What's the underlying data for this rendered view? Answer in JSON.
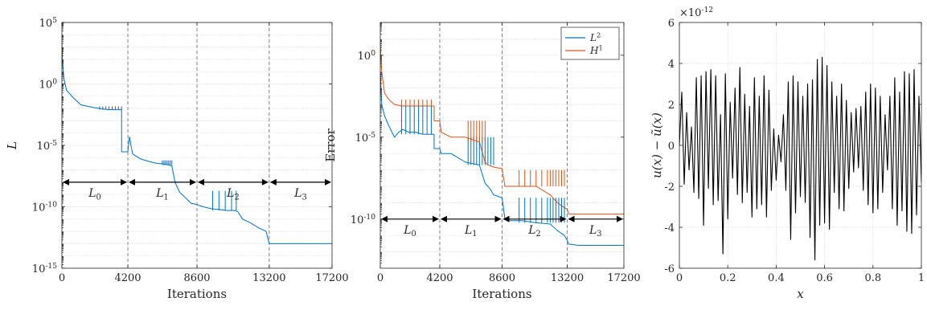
{
  "chart_data": [
    {
      "type": "line",
      "yscale": "log",
      "xlabel": "Iterations",
      "ylabel": "L",
      "xlim": [
        0,
        17200
      ],
      "ylim": [
        1e-15,
        100000.0
      ],
      "xticks": [
        0,
        4200,
        8600,
        13200,
        17200
      ],
      "xtick_labels": [
        "0",
        "4200",
        "8600",
        "13200",
        "17200"
      ],
      "yticks": [
        1e-15,
        1e-10,
        1e-05,
        1,
        100000.0
      ],
      "ytick_labels": [
        {
          "b": "10",
          "e": "-15"
        },
        {
          "b": "10",
          "e": "-10"
        },
        {
          "b": "10",
          "e": "-5"
        },
        {
          "b": "10",
          "e": "0"
        },
        {
          "b": "10",
          "e": "5"
        }
      ],
      "grid": true,
      "stage_boundaries": [
        4200,
        8600,
        13200
      ],
      "arrow_y": 1e-08,
      "stages": [
        {
          "base": "L",
          "sub": "0",
          "from": 0,
          "to": 4200
        },
        {
          "base": "L",
          "sub": "1",
          "from": 4200,
          "to": 8600
        },
        {
          "base": "L",
          "sub": "2",
          "from": 8600,
          "to": 13200
        },
        {
          "base": "L",
          "sub": "3",
          "from": 13200,
          "to": 17200
        }
      ],
      "series": [
        {
          "color": "#0072BD",
          "x": [
            0,
            50,
            150,
            300,
            700,
            1200,
            2000,
            2600,
            3000,
            3000,
            3800,
            3801,
            4100,
            4150,
            4200,
            4300,
            4500,
            5000,
            5500,
            6000,
            6500,
            6800,
            7000,
            7200,
            7500,
            7900,
            8200,
            8600,
            8800,
            9000,
            9500,
            10000,
            10500,
            11000,
            11200,
            11500,
            12000,
            12500,
            13000,
            13200,
            13300,
            14000,
            15000,
            16000,
            17200
          ],
          "y": [
            2000,
            30,
            2,
            0.3,
            0.08,
            0.02,
            0.012,
            0.009,
            0.008,
            0.008,
            0.008,
            3e-06,
            3e-06,
            3e-06,
            3e-06,
            5e-05,
            2e-06,
            8e-07,
            5e-07,
            3.5e-07,
            3e-07,
            2.5e-07,
            2.2e-07,
            1e-08,
            1.5e-09,
            5e-10,
            2e-10,
            1.5e-10,
            1.2e-10,
            1e-10,
            7e-11,
            6e-11,
            5e-11,
            5e-11,
            4e-11,
            1e-11,
            5e-12,
            2e-12,
            1e-12,
            1e-13,
            1e-13,
            1e-13,
            1e-13,
            1e-13,
            1e-13
          ]
        }
      ],
      "spikes": [
        {
          "color": "#0072BD",
          "x": [
            2400,
            2600,
            2800,
            3000,
            3200,
            3400,
            3600,
            3800
          ],
          "base": 0.008,
          "peak": 0.015
        },
        {
          "color": "#0072BD",
          "x": [
            6400,
            6500,
            6600,
            6700,
            6800,
            6900,
            7000
          ],
          "base": 2.5e-07,
          "peak": 6e-07
        },
        {
          "color": "#0072BD",
          "x": [
            9600,
            10000,
            10400,
            10800,
            11100
          ],
          "base": 5e-11,
          "peak": 2e-09
        }
      ]
    },
    {
      "type": "line",
      "yscale": "log",
      "xlabel": "Iterations",
      "ylabel": "Error",
      "xlim": [
        0,
        17200
      ],
      "ylim": [
        1e-13,
        100.0
      ],
      "xticks": [
        0,
        4200,
        8600,
        13200,
        17200
      ],
      "xtick_labels": [
        "0",
        "4200",
        "8600",
        "13200",
        "17200"
      ],
      "yticks": [
        1e-10,
        1e-05,
        1
      ],
      "ytick_labels": [
        {
          "b": "10",
          "e": "-10"
        },
        {
          "b": "10",
          "e": "-5"
        },
        {
          "b": "10",
          "e": "0"
        }
      ],
      "grid": true,
      "stage_boundaries": [
        4200,
        8600,
        13200
      ],
      "arrow_y": 1e-10,
      "stages": [
        {
          "base": "L",
          "sub": "0",
          "from": 0,
          "to": 4200
        },
        {
          "base": "L",
          "sub": "1",
          "from": 4200,
          "to": 8600
        },
        {
          "base": "L",
          "sub": "2",
          "from": 8600,
          "to": 13200
        },
        {
          "base": "L",
          "sub": "3",
          "from": 13200,
          "to": 17200
        }
      ],
      "legend": {
        "position": "top-right",
        "entries": [
          {
            "base": "L",
            "sup": "2",
            "color": "#0072BD"
          },
          {
            "base": "H",
            "sup": "1",
            "color": "#D95319"
          }
        ]
      },
      "series": [
        {
          "color": "#0072BD",
          "x": [
            0,
            100,
            300,
            600,
            1000,
            1300,
            1600,
            2000,
            2500,
            3000,
            3800,
            3801,
            4200,
            4300,
            5000,
            6000,
            7000,
            7400,
            7600,
            7800,
            8000,
            8600,
            8800,
            9000,
            10000,
            11000,
            12000,
            12500,
            13000,
            13200,
            13300,
            14000,
            17200
          ],
          "y": [
            0.1,
            0.001,
            0.0002,
            5e-05,
            1e-05,
            2e-05,
            3e-05,
            2e-05,
            2e-05,
            1.5e-05,
            1.5e-05,
            2e-06,
            2e-06,
            1e-06,
            1e-06,
            3e-07,
            2e-07,
            1.5e-08,
            1e-08,
            6e-09,
            3e-09,
            2e-09,
            1e-10,
            8e-11,
            8e-11,
            6e-11,
            5e-11,
            2e-11,
            1e-11,
            5e-12,
            3e-12,
            2.5e-12,
            2.5e-12
          ]
        },
        {
          "color": "#D95319",
          "x": [
            0,
            100,
            300,
            600,
            1000,
            1500,
            2000,
            2500,
            3000,
            3800,
            3801,
            4200,
            4300,
            5000,
            6000,
            7000,
            7400,
            7600,
            8000,
            8600,
            8800,
            9000,
            10000,
            11000,
            12000,
            12500,
            13000,
            13200,
            13300,
            14000,
            17200
          ],
          "y": [
            5,
            0.1,
            0.005,
            0.002,
            0.001,
            0.0008,
            0.0008,
            0.0008,
            0.0008,
            0.0008,
            0.0001,
            0.0001,
            2e-05,
            1e-05,
            1e-05,
            5e-06,
            3e-07,
            2e-07,
            1.5e-07,
            1.2e-07,
            1e-08,
            1e-08,
            1e-08,
            1e-08,
            3e-09,
            1e-09,
            5e-10,
            4e-10,
            2e-10,
            2e-10,
            2e-10
          ]
        }
      ],
      "spikes": [
        {
          "color": "#0072BD",
          "x": [
            1500,
            1800,
            2100,
            2400,
            2700,
            3000,
            3300,
            3600
          ],
          "base": 1.5e-05,
          "peak": 0.0008
        },
        {
          "color": "#D95319",
          "x": [
            1500,
            1800,
            2100,
            2400,
            2700,
            3000,
            3300,
            3600
          ],
          "base": 0.0008,
          "peak": 0.002
        },
        {
          "color": "#0072BD",
          "x": [
            6200,
            6400,
            6600,
            6800,
            7000,
            7200,
            7400,
            7600,
            7800,
            8000
          ],
          "base": 2e-07,
          "peak": 1e-05
        },
        {
          "color": "#D95319",
          "x": [
            6200,
            6400,
            6600,
            6800,
            7000,
            7200,
            7400
          ],
          "base": 5e-06,
          "peak": 0.0001
        },
        {
          "color": "#0072BD",
          "x": [
            9800,
            10200,
            10600,
            11000,
            11400,
            11800,
            12000,
            12200,
            12400,
            12600,
            12800,
            13000
          ],
          "base": 6e-11,
          "peak": 2e-09
        },
        {
          "color": "#D95319",
          "x": [
            9800,
            10200,
            10600,
            11000,
            11400,
            11800,
            12000,
            12200,
            12400,
            12600,
            12800,
            13000
          ],
          "base": 1e-08,
          "peak": 1e-07
        }
      ]
    },
    {
      "type": "line",
      "yscale": "linear",
      "xlabel": "x",
      "ylabel": "u(x) − ũ(x)",
      "xlim": [
        0,
        1
      ],
      "ylim": [
        -6,
        6
      ],
      "exponent_label": {
        "b": "×10",
        "e": "-12"
      },
      "xticks": [
        0,
        0.2,
        0.4,
        0.6,
        0.8,
        1
      ],
      "xtick_labels": [
        "0",
        "0.2",
        "0.4",
        "0.6",
        "0.8",
        "1"
      ],
      "yticks": [
        -6,
        -4,
        -2,
        0,
        2,
        4,
        6
      ],
      "ytick_labels": [
        "-6",
        "-4",
        "-2",
        "0",
        "2",
        "4",
        "6"
      ],
      "grid": true,
      "series": [
        {
          "color": "#000000",
          "x": [
            0,
            0.01,
            0.02,
            0.03,
            0.04,
            0.05,
            0.06,
            0.07,
            0.08,
            0.09,
            0.1,
            0.11,
            0.12,
            0.13,
            0.14,
            0.15,
            0.16,
            0.17,
            0.18,
            0.19,
            0.2,
            0.21,
            0.22,
            0.23,
            0.24,
            0.25,
            0.26,
            0.27,
            0.28,
            0.29,
            0.3,
            0.31,
            0.32,
            0.33,
            0.34,
            0.35,
            0.36,
            0.37,
            0.38,
            0.39,
            0.4,
            0.41,
            0.42,
            0.43,
            0.44,
            0.45,
            0.46,
            0.47,
            0.48,
            0.49,
            0.5,
            0.51,
            0.52,
            0.53,
            0.54,
            0.55,
            0.56,
            0.57,
            0.58,
            0.59,
            0.6,
            0.61,
            0.62,
            0.63,
            0.64,
            0.65,
            0.66,
            0.67,
            0.68,
            0.69,
            0.7,
            0.71,
            0.72,
            0.73,
            0.74,
            0.75,
            0.76,
            0.77,
            0.78,
            0.79,
            0.8,
            0.81,
            0.82,
            0.83,
            0.84,
            0.85,
            0.86,
            0.87,
            0.88,
            0.89,
            0.9,
            0.91,
            0.92,
            0.93,
            0.94,
            0.95,
            0.96,
            0.97,
            0.98,
            0.99,
            1.0
          ],
          "y": [
            0,
            2.6,
            -1.9,
            1.6,
            -1.2,
            0.9,
            -2.3,
            3.3,
            -2.6,
            3.4,
            -3.9,
            3.6,
            -2.1,
            3.7,
            -2.9,
            3.4,
            -2.7,
            1.5,
            -5.3,
            3.5,
            -3.6,
            2.1,
            -1.6,
            2.8,
            -2.4,
            3.8,
            -2.8,
            2.5,
            -2.3,
            1.9,
            -3.5,
            3.3,
            -3.1,
            2.4,
            -2.9,
            3.4,
            -3.5,
            2.7,
            -2.2,
            0.8,
            -1.7,
            0.5,
            -0.8,
            1.5,
            -2.2,
            3.1,
            -4.6,
            3.4,
            -3.3,
            3.1,
            -2.5,
            2.4,
            -2.8,
            3.0,
            -4.5,
            3.2,
            -5.6,
            4.2,
            -3.9,
            4.3,
            -3.8,
            3.9,
            -4.1,
            3.1,
            -2.3,
            2.4,
            -3.1,
            3.0,
            -3.2,
            2.2,
            -2.1,
            1.6,
            -1.3,
            1.8,
            -1.1,
            1.9,
            -2.2,
            2.6,
            -2.9,
            3.0,
            -3.3,
            2.8,
            -3.1,
            2.4,
            -2.3,
            1.5,
            -1.2,
            2.4,
            -3.1,
            3.3,
            -3.9,
            2.6,
            -3.2,
            3.6,
            -4.2,
            3.5,
            -4.3,
            3.7,
            -3.4,
            2.4,
            -1.8
          ]
        }
      ]
    }
  ]
}
